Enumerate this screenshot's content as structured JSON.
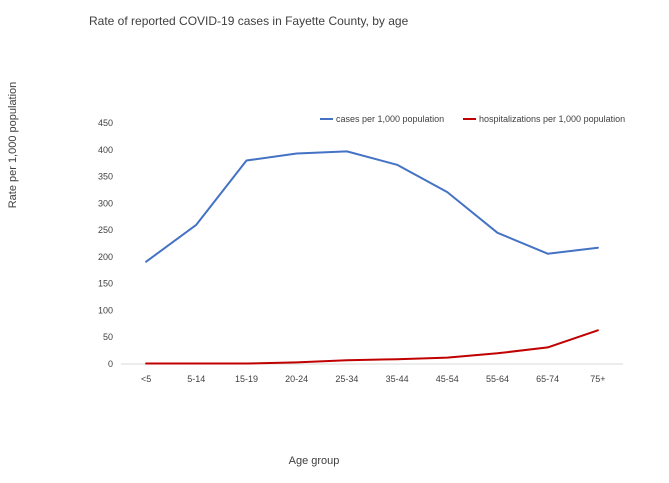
{
  "chart_data": {
    "type": "line",
    "title": "Rate of reported COVID-19 cases in Fayette County, by age",
    "xlabel": "Age group",
    "ylabel": "Rate per 1,000 population",
    "ylim": [
      0,
      450
    ],
    "yticks": [
      0,
      50,
      100,
      150,
      200,
      250,
      300,
      350,
      400,
      450
    ],
    "grid": false,
    "legend_position": "top-right",
    "categories": [
      "<5",
      "5-14",
      "15-19",
      "20-24",
      "25-34",
      "35-44",
      "45-54",
      "55-64",
      "65-74",
      "75+"
    ],
    "series": [
      {
        "name": "cases per 1,000 population",
        "color": "#4472C4",
        "values": [
          191,
          260,
          380,
          393,
          397,
          372,
          321,
          245,
          206,
          217
        ]
      },
      {
        "name": "hospitalizations per 1,000 population",
        "color": "#C00000",
        "values": [
          1,
          1,
          1,
          3,
          7,
          9,
          12,
          20,
          31,
          63
        ]
      }
    ]
  }
}
